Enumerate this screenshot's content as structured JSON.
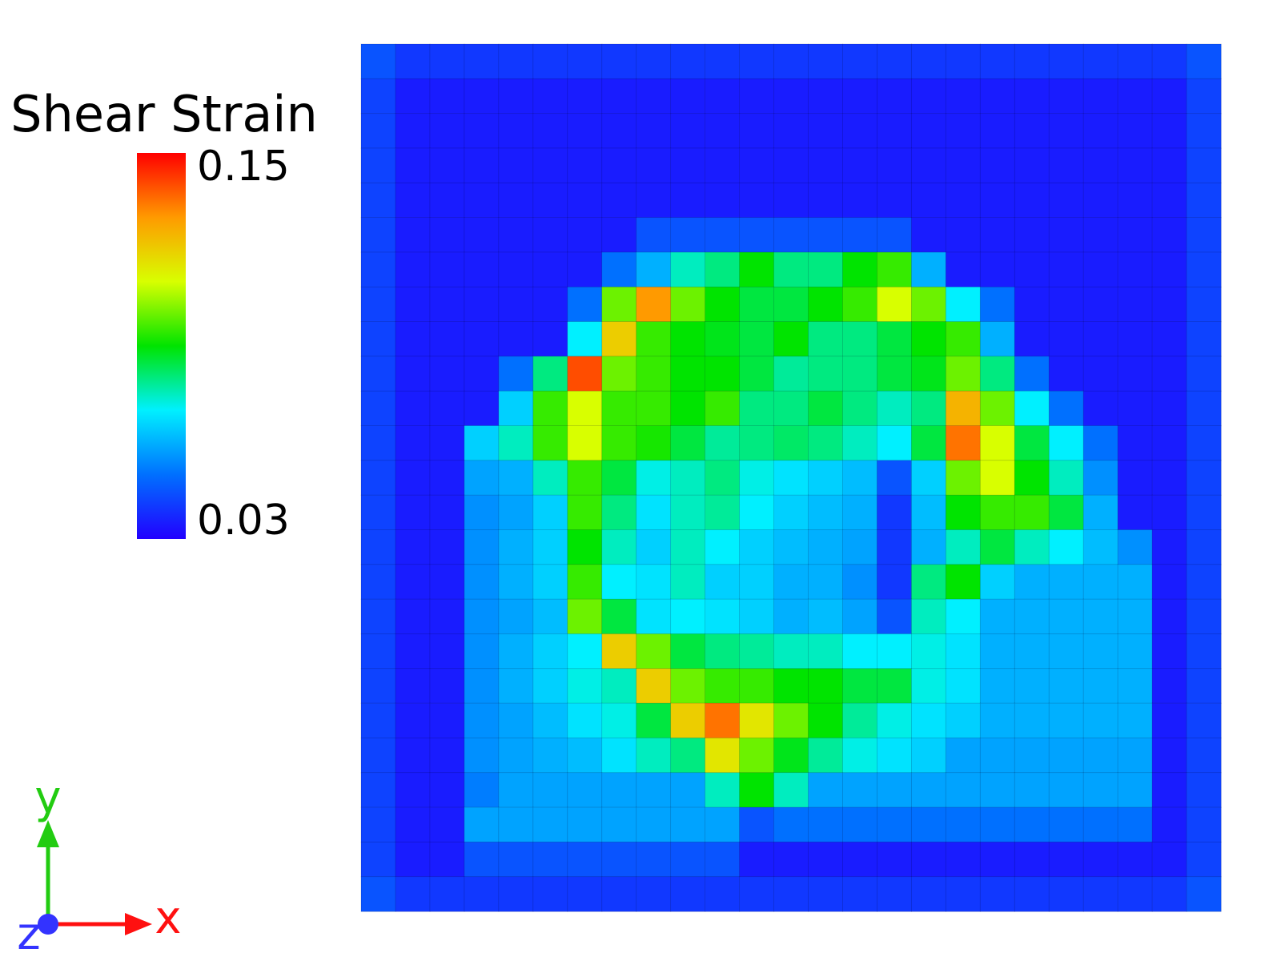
{
  "chart_data": {
    "type": "heatmap",
    "colorbar_title": "Shear Strain",
    "zlim": [
      0.03,
      0.15
    ],
    "zticks": [
      0.03,
      0.15
    ],
    "colorscale": [
      "#2200ff",
      "#0070ff",
      "#00f0ff",
      "#00e400",
      "#d8ff00",
      "#ff9a00",
      "#ff0000"
    ],
    "triad_labels": [
      "x",
      "y",
      "z"
    ],
    "z": [
      [
        0.045,
        0.04,
        0.04,
        0.04,
        0.04,
        0.04,
        0.04,
        0.04,
        0.04,
        0.04,
        0.04,
        0.04,
        0.04,
        0.04,
        0.04,
        0.04,
        0.04,
        0.04,
        0.04,
        0.04,
        0.04,
        0.04,
        0.04,
        0.04,
        0.045
      ],
      [
        0.042,
        0.035,
        0.035,
        0.035,
        0.035,
        0.035,
        0.035,
        0.035,
        0.035,
        0.035,
        0.035,
        0.035,
        0.035,
        0.035,
        0.035,
        0.035,
        0.035,
        0.035,
        0.035,
        0.035,
        0.035,
        0.035,
        0.035,
        0.035,
        0.042
      ],
      [
        0.042,
        0.035,
        0.035,
        0.035,
        0.035,
        0.035,
        0.035,
        0.035,
        0.035,
        0.035,
        0.035,
        0.035,
        0.035,
        0.035,
        0.035,
        0.035,
        0.035,
        0.035,
        0.035,
        0.035,
        0.035,
        0.035,
        0.035,
        0.035,
        0.042
      ],
      [
        0.042,
        0.035,
        0.035,
        0.035,
        0.035,
        0.035,
        0.035,
        0.035,
        0.035,
        0.035,
        0.035,
        0.035,
        0.035,
        0.035,
        0.035,
        0.035,
        0.035,
        0.035,
        0.035,
        0.035,
        0.035,
        0.035,
        0.035,
        0.035,
        0.042
      ],
      [
        0.042,
        0.035,
        0.035,
        0.035,
        0.035,
        0.035,
        0.035,
        0.035,
        0.035,
        0.035,
        0.035,
        0.035,
        0.035,
        0.035,
        0.035,
        0.035,
        0.035,
        0.035,
        0.035,
        0.035,
        0.035,
        0.035,
        0.035,
        0.035,
        0.042
      ],
      [
        0.042,
        0.035,
        0.035,
        0.035,
        0.035,
        0.035,
        0.035,
        0.035,
        0.045,
        0.045,
        0.045,
        0.045,
        0.045,
        0.045,
        0.045,
        0.045,
        0.035,
        0.035,
        0.035,
        0.035,
        0.035,
        0.035,
        0.035,
        0.035,
        0.042
      ],
      [
        0.042,
        0.035,
        0.035,
        0.035,
        0.035,
        0.035,
        0.035,
        0.05,
        0.06,
        0.075,
        0.08,
        0.09,
        0.08,
        0.08,
        0.09,
        0.095,
        0.06,
        0.035,
        0.035,
        0.035,
        0.035,
        0.035,
        0.035,
        0.035,
        0.042
      ],
      [
        0.042,
        0.035,
        0.035,
        0.035,
        0.035,
        0.035,
        0.05,
        0.1,
        0.13,
        0.1,
        0.09,
        0.085,
        0.085,
        0.09,
        0.095,
        0.11,
        0.1,
        0.07,
        0.05,
        0.035,
        0.035,
        0.035,
        0.035,
        0.035,
        0.042
      ],
      [
        0.042,
        0.035,
        0.035,
        0.035,
        0.035,
        0.035,
        0.07,
        0.12,
        0.095,
        0.09,
        0.088,
        0.085,
        0.09,
        0.08,
        0.08,
        0.085,
        0.09,
        0.095,
        0.06,
        0.035,
        0.035,
        0.035,
        0.035,
        0.035,
        0.042
      ],
      [
        0.042,
        0.035,
        0.035,
        0.035,
        0.05,
        0.08,
        0.14,
        0.1,
        0.095,
        0.09,
        0.09,
        0.085,
        0.078,
        0.08,
        0.08,
        0.085,
        0.088,
        0.1,
        0.08,
        0.05,
        0.035,
        0.035,
        0.035,
        0.035,
        0.042
      ],
      [
        0.042,
        0.035,
        0.035,
        0.035,
        0.065,
        0.095,
        0.11,
        0.095,
        0.095,
        0.09,
        0.095,
        0.08,
        0.08,
        0.085,
        0.08,
        0.075,
        0.08,
        0.125,
        0.1,
        0.07,
        0.05,
        0.035,
        0.035,
        0.035,
        0.042
      ],
      [
        0.042,
        0.035,
        0.035,
        0.065,
        0.075,
        0.095,
        0.11,
        0.095,
        0.092,
        0.085,
        0.078,
        0.08,
        0.082,
        0.08,
        0.075,
        0.07,
        0.085,
        0.135,
        0.11,
        0.085,
        0.07,
        0.05,
        0.035,
        0.035,
        0.042
      ],
      [
        0.042,
        0.035,
        0.035,
        0.058,
        0.06,
        0.075,
        0.095,
        0.085,
        0.072,
        0.075,
        0.08,
        0.072,
        0.068,
        0.065,
        0.062,
        0.045,
        0.065,
        0.1,
        0.11,
        0.09,
        0.075,
        0.055,
        0.035,
        0.035,
        0.042
      ],
      [
        0.042,
        0.035,
        0.035,
        0.055,
        0.058,
        0.065,
        0.095,
        0.08,
        0.068,
        0.075,
        0.078,
        0.07,
        0.065,
        0.062,
        0.06,
        0.04,
        0.062,
        0.09,
        0.095,
        0.095,
        0.085,
        0.06,
        0.035,
        0.035,
        0.042
      ],
      [
        0.042,
        0.035,
        0.035,
        0.055,
        0.06,
        0.065,
        0.09,
        0.075,
        0.065,
        0.075,
        0.07,
        0.065,
        0.062,
        0.06,
        0.058,
        0.04,
        0.06,
        0.075,
        0.085,
        0.075,
        0.07,
        0.062,
        0.055,
        0.035,
        0.042
      ],
      [
        0.042,
        0.035,
        0.035,
        0.055,
        0.06,
        0.065,
        0.095,
        0.07,
        0.068,
        0.075,
        0.065,
        0.065,
        0.06,
        0.06,
        0.055,
        0.04,
        0.08,
        0.09,
        0.065,
        0.06,
        0.06,
        0.06,
        0.06,
        0.035,
        0.042
      ],
      [
        0.042,
        0.035,
        0.035,
        0.055,
        0.058,
        0.062,
        0.1,
        0.085,
        0.068,
        0.07,
        0.068,
        0.065,
        0.06,
        0.062,
        0.058,
        0.045,
        0.075,
        0.07,
        0.06,
        0.06,
        0.06,
        0.06,
        0.06,
        0.035,
        0.042
      ],
      [
        0.042,
        0.035,
        0.035,
        0.055,
        0.06,
        0.065,
        0.07,
        0.12,
        0.1,
        0.085,
        0.08,
        0.078,
        0.075,
        0.075,
        0.07,
        0.07,
        0.072,
        0.068,
        0.06,
        0.06,
        0.06,
        0.06,
        0.06,
        0.035,
        0.042
      ],
      [
        0.042,
        0.035,
        0.035,
        0.055,
        0.06,
        0.065,
        0.072,
        0.075,
        0.12,
        0.1,
        0.095,
        0.095,
        0.09,
        0.09,
        0.085,
        0.085,
        0.072,
        0.068,
        0.06,
        0.06,
        0.06,
        0.06,
        0.06,
        0.035,
        0.042
      ],
      [
        0.042,
        0.035,
        0.035,
        0.055,
        0.058,
        0.062,
        0.068,
        0.072,
        0.085,
        0.12,
        0.135,
        0.115,
        0.1,
        0.09,
        0.078,
        0.072,
        0.068,
        0.065,
        0.06,
        0.06,
        0.06,
        0.06,
        0.06,
        0.035,
        0.042
      ],
      [
        0.042,
        0.035,
        0.035,
        0.055,
        0.058,
        0.06,
        0.062,
        0.068,
        0.075,
        0.08,
        0.115,
        0.1,
        0.088,
        0.078,
        0.072,
        0.068,
        0.065,
        0.058,
        0.058,
        0.058,
        0.058,
        0.058,
        0.058,
        0.035,
        0.042
      ],
      [
        0.042,
        0.035,
        0.035,
        0.052,
        0.058,
        0.058,
        0.058,
        0.058,
        0.058,
        0.058,
        0.075,
        0.09,
        0.075,
        0.058,
        0.058,
        0.058,
        0.058,
        0.058,
        0.058,
        0.058,
        0.058,
        0.058,
        0.058,
        0.035,
        0.042
      ],
      [
        0.042,
        0.035,
        0.035,
        0.058,
        0.058,
        0.058,
        0.058,
        0.058,
        0.058,
        0.058,
        0.058,
        0.045,
        0.05,
        0.05,
        0.05,
        0.05,
        0.05,
        0.05,
        0.05,
        0.05,
        0.05,
        0.05,
        0.05,
        0.035,
        0.042
      ],
      [
        0.042,
        0.035,
        0.035,
        0.045,
        0.045,
        0.045,
        0.045,
        0.045,
        0.045,
        0.045,
        0.045,
        0.035,
        0.035,
        0.035,
        0.035,
        0.035,
        0.035,
        0.035,
        0.035,
        0.035,
        0.035,
        0.035,
        0.035,
        0.035,
        0.042
      ],
      [
        0.045,
        0.04,
        0.04,
        0.04,
        0.04,
        0.04,
        0.04,
        0.04,
        0.04,
        0.04,
        0.04,
        0.04,
        0.04,
        0.04,
        0.04,
        0.04,
        0.04,
        0.04,
        0.04,
        0.04,
        0.04,
        0.04,
        0.04,
        0.04,
        0.045
      ]
    ]
  }
}
